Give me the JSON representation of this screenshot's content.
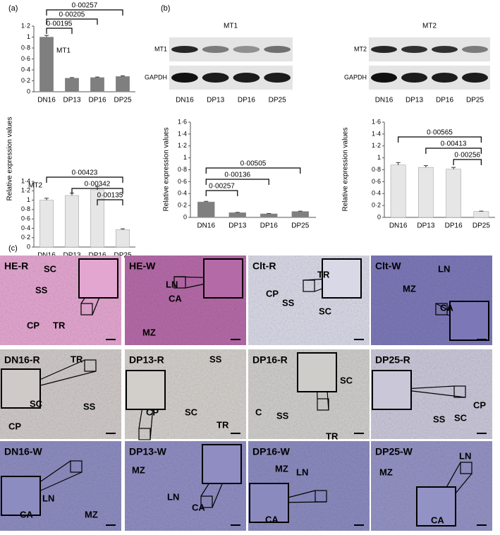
{
  "panel_labels": [
    "(a)",
    "(b)",
    "(c)"
  ],
  "chart_data": [
    {
      "type": "bar",
      "title": "MT1",
      "y_label": "Relative expression values",
      "categories": [
        "DN16",
        "DP13",
        "DP16",
        "DP25"
      ],
      "values": [
        1.0,
        0.25,
        0.26,
        0.28
      ],
      "errors": [
        0.03,
        0.01,
        0.01,
        0.01
      ],
      "color": "#7f7f7f",
      "ylim": [
        0,
        1.2
      ],
      "yticks": [
        0,
        {
          "value": 0.2,
          "label": "0·2"
        },
        {
          "value": 0.4,
          "label": "0·4"
        },
        {
          "value": 0.6,
          "label": "0·6"
        },
        {
          "value": 0.8,
          "label": "0·8"
        },
        1,
        {
          "value": 1.2,
          "label": "1·2"
        }
      ],
      "annotations": [
        {
          "text": "0·00195",
          "between": [
            "DN16",
            "DP13"
          ]
        },
        {
          "text": "0·00205",
          "between": [
            "DN16",
            "DP16"
          ]
        },
        {
          "text": "0·00257",
          "between": [
            "DN16",
            "DP25"
          ]
        }
      ]
    },
    {
      "type": "bar",
      "title": "MT2",
      "categories": [
        "DN16",
        "DP13",
        "DP16",
        "DP25"
      ],
      "values": [
        1.0,
        1.1,
        1.22,
        0.37
      ],
      "errors": [
        0.04,
        0.05,
        0.07,
        0.02
      ],
      "color": "#e6e6e6",
      "ylim": [
        0,
        1.4
      ],
      "yticks": [
        0,
        {
          "value": 0.2,
          "label": "0·2"
        },
        {
          "value": 0.4,
          "label": "0·4"
        },
        {
          "value": 0.6,
          "label": "0·6"
        },
        {
          "value": 0.8,
          "label": "0·8"
        },
        1,
        {
          "value": 1.2,
          "label": "1·2"
        },
        {
          "value": 1.4,
          "label": "1·4"
        }
      ],
      "annotations": [
        {
          "text": "0·00135",
          "between": [
            "DP16",
            "DP25"
          ]
        },
        {
          "text": "0·00342",
          "between": [
            "DP13",
            "DP25"
          ]
        },
        {
          "text": "0·00423",
          "between": [
            "DN16",
            "DP25"
          ]
        }
      ]
    },
    {
      "type": "bar",
      "y_label": "Relative expression values",
      "categories": [
        "DN16",
        "DP13",
        "DP16",
        "DP25"
      ],
      "values": [
        0.26,
        0.08,
        0.06,
        0.1
      ],
      "errors": [
        0.01,
        0.005,
        0.005,
        0.005
      ],
      "color": "#7f7f7f",
      "ylim": [
        0,
        1.6
      ],
      "yticks": [
        0,
        {
          "value": 0.2,
          "label": "0·2"
        },
        {
          "value": 0.4,
          "label": "0·4"
        },
        {
          "value": 0.6,
          "label": "0·6"
        },
        {
          "value": 0.8,
          "label": "0·8"
        },
        1,
        {
          "value": 1.2,
          "label": "1·2"
        },
        {
          "value": 1.4,
          "label": "1·4"
        },
        {
          "value": 1.6,
          "label": "1·6"
        }
      ],
      "annotations": [
        {
          "text": "0·00257",
          "between": [
            "DN16",
            "DP13"
          ]
        },
        {
          "text": "0·00136",
          "between": [
            "DN16",
            "DP16"
          ]
        },
        {
          "text": "0·00505",
          "between": [
            "DN16",
            "DP25"
          ]
        }
      ]
    },
    {
      "type": "bar",
      "y_label": "Relative expression values",
      "categories": [
        "DN16",
        "DP13",
        "DP16",
        "DP25"
      ],
      "values": [
        0.88,
        0.84,
        0.81,
        0.1
      ],
      "errors": [
        0.04,
        0.03,
        0.03,
        0.005
      ],
      "color": "#e6e6e6",
      "ylim": [
        0,
        1.6
      ],
      "yticks": [
        0,
        {
          "value": 0.2,
          "label": "0·2"
        },
        {
          "value": 0.4,
          "label": "0·4"
        },
        {
          "value": 0.6,
          "label": "0·6"
        },
        {
          "value": 0.8,
          "label": "0·8"
        },
        1,
        {
          "value": 1.2,
          "label": "1·2"
        },
        {
          "value": 1.4,
          "label": "1·4"
        },
        {
          "value": 1.6,
          "label": "1·6"
        }
      ],
      "annotations": [
        {
          "text": "0·00256",
          "between": [
            "DP16",
            "DP25"
          ]
        },
        {
          "text": "0·00413",
          "between": [
            "DP13",
            "DP25"
          ]
        },
        {
          "text": "0·00565",
          "between": [
            "DN16",
            "DP25"
          ]
        }
      ]
    }
  ],
  "blots": [
    {
      "title": "MT1",
      "rows": [
        "MT1",
        "GAPDH"
      ],
      "lanes": [
        "DN16",
        "DP13",
        "DP16",
        "DP25"
      ]
    },
    {
      "title": "MT2",
      "rows": [
        "MT2",
        "GAPDH"
      ],
      "lanes": [
        "DN16",
        "DP13",
        "DP16",
        "DP25"
      ]
    }
  ],
  "histology": [
    {
      "title": "HE-R",
      "labels": [
        "SC",
        "SS",
        "CP",
        "TR"
      ]
    },
    {
      "title": "HE-W",
      "labels": [
        "LN",
        "CA",
        "MZ"
      ]
    },
    {
      "title": "Clt-R",
      "labels": [
        "TR",
        "CP",
        "SS",
        "SC"
      ]
    },
    {
      "title": "Clt-W",
      "labels": [
        "LN",
        "MZ",
        "CA"
      ]
    },
    {
      "title": "DN16-R",
      "labels": [
        "TR",
        "SC",
        "SS",
        "CP"
      ]
    },
    {
      "title": "DP13-R",
      "labels": [
        "SS",
        "CP",
        "SC",
        "TR"
      ]
    },
    {
      "title": "DP16-R",
      "labels": [
        "SC",
        "C",
        "SS",
        "TR"
      ]
    },
    {
      "title": "DP25-R",
      "labels": [
        "CP",
        "SS",
        "SC"
      ]
    },
    {
      "title": "DN16-W",
      "labels": [
        "CA",
        "LN",
        "MZ"
      ]
    },
    {
      "title": "DP13-W",
      "labels": [
        "MZ",
        "LN",
        "CA"
      ]
    },
    {
      "title": "DP16-W",
      "labels": [
        "MZ",
        "LN",
        "CA"
      ]
    },
    {
      "title": "DP25-W",
      "labels": [
        "LN",
        "MZ",
        "CA"
      ]
    }
  ]
}
